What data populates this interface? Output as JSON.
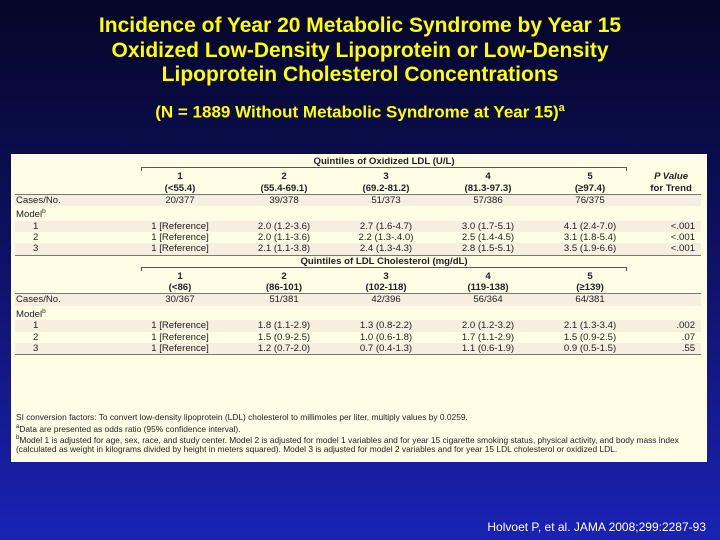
{
  "title": {
    "line1": "Incidence of Year 20 Metabolic Syndrome by Year 15",
    "line2": "Oxidized Low-Density Lipoprotein or Low-Density",
    "line3": "Lipoprotein Cholesterol Concentrations",
    "subtitle": "(N = 1889 Without Metabolic Syndrome at Year 15)",
    "subtitle_sup": "a"
  },
  "table1": {
    "group_header": "Quintiles of Oxidized LDL (U/L)",
    "col_nums": [
      "1",
      "2",
      "3",
      "4",
      "5"
    ],
    "col_ranges": [
      "(<55.4)",
      "(55.4-69.1)",
      "(69.2-81.2)",
      "(81.3-97.3)",
      "(≥97.4)"
    ],
    "pvalue_header_1": "P Value",
    "pvalue_header_2": "for Trend",
    "cases_label": "Cases/No.",
    "cases": [
      "20/377",
      "39/378",
      "51/373",
      "57/386",
      "76/375"
    ],
    "model_label": "Model",
    "model_sup": "b",
    "rows": [
      {
        "model": "1",
        "cells": [
          "1 [Reference]",
          "2.0 (1.2-3.6)",
          "2.7 (1.6-4.7)",
          "3.0 (1.7-5.1)",
          "4.1 (2.4-7.0)"
        ],
        "p": "<.001"
      },
      {
        "model": "2",
        "cells": [
          "1 [Reference]",
          "2.0 (1.1-3.6)",
          "2.2 (1.3-.4.0)",
          "2.5 (1.4-4.5)",
          "3.1 (1.8-5.4)"
        ],
        "p": "<.001"
      },
      {
        "model": "3",
        "cells": [
          "1 [Reference]",
          "2.1 (1.1-3.8)",
          "2.4 (1.3-4.3)",
          "2.8 (1.5-5.1)",
          "3.5 (1.9-6.6)"
        ],
        "p": "<.001"
      }
    ]
  },
  "table2": {
    "group_header": "Quintiles of LDL Cholesterol (mg/dL)",
    "col_nums": [
      "1",
      "2",
      "3",
      "4",
      "5"
    ],
    "col_ranges": [
      "(<86)",
      "(86-101)",
      "(102-118)",
      "(119-138)",
      "(≥139)"
    ],
    "cases_label": "Cases/No.",
    "cases": [
      "30/367",
      "51/381",
      "42/396",
      "56/364",
      "64/381"
    ],
    "model_label": "Model",
    "model_sup": "b",
    "rows": [
      {
        "model": "1",
        "cells": [
          "1 [Reference]",
          "1.8 (1.1-2.9)",
          "1.3 (0.8-2.2)",
          "2.0 (1.2-3.2)",
          "2.1 (1.3-3.4)"
        ],
        "p": ".002"
      },
      {
        "model": "2",
        "cells": [
          "1 [Reference]",
          "1.5 (0.9-2.5)",
          "1.0 (0.6-1.8)",
          "1.7 (1.1-2.9)",
          "1.5 (0.9-2.5)"
        ],
        "p": ".07"
      },
      {
        "model": "3",
        "cells": [
          "1 [Reference]",
          "1.2 (0.7-2.0)",
          "0.7 (0.4-1.3)",
          "1.1 (0.6-1.9)",
          "0.9 (0.5-1.5)"
        ],
        "p": ".55"
      }
    ]
  },
  "footnotes": {
    "si": "SI conversion factors: To convert low-density lipoprotein (LDL) cholesterol to millimoles per liter, multiply values by 0.0259.",
    "a_sup": "a",
    "a": "Data are presented as odds ratio (95% confidence interval).",
    "b_sup": "b",
    "b": "Model 1 is adjusted for age, sex, race, and study center. Model 2 is adjusted for model 1 variables and for year 15 cigarette smoking status, physical activity, and body mass index (calculated as weight in kilograms divided by height in meters squared). Model 3 is adjusted for model 2 variables and for year 15 LDL cholesterol or oxidized LDL."
  },
  "citation": "Holvoet P, et al. JAMA 2008;299:2287-93"
}
